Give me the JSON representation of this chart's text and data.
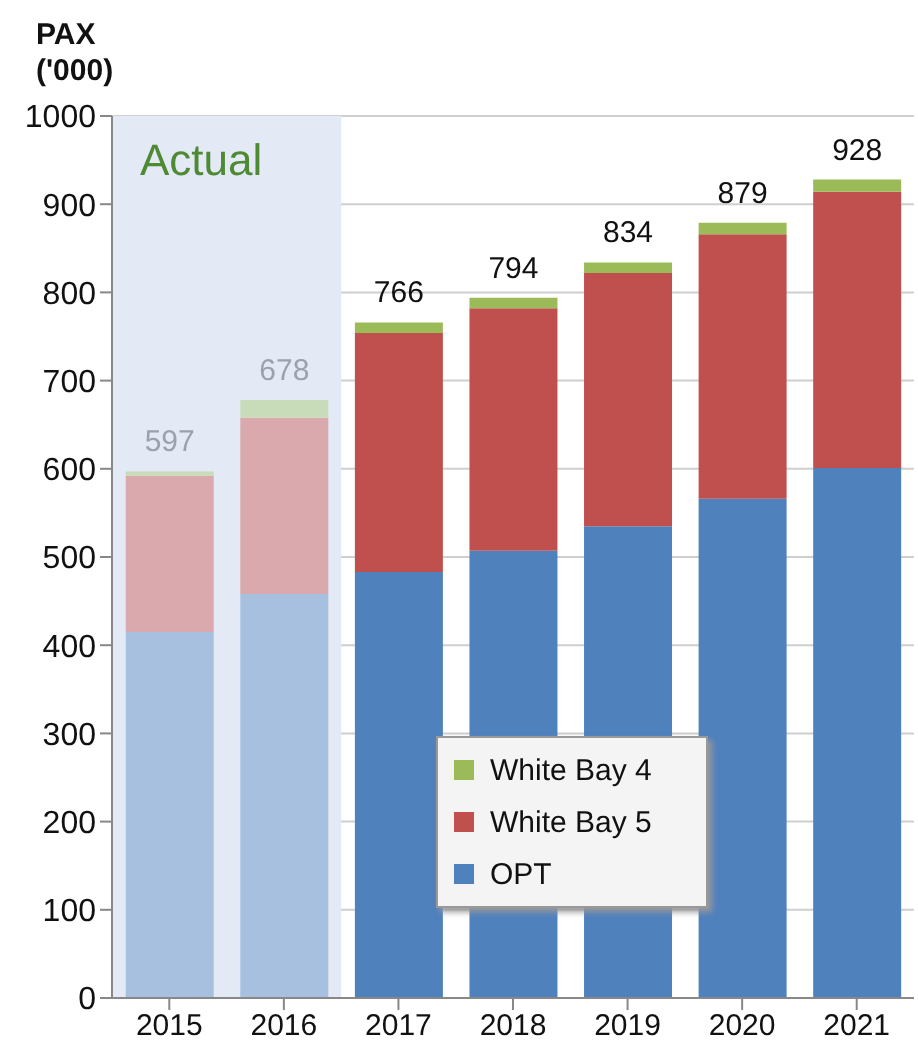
{
  "chart_data": {
    "type": "bar",
    "ylabel": "PAX ('000)",
    "categories": [
      "2015",
      "2016",
      "2017",
      "2018",
      "2019",
      "2020",
      "2021"
    ],
    "stacked": true,
    "series": [
      {
        "name": "OPT",
        "color": "#4f81bd",
        "colors": [
          "#a7c0e0",
          "#a7c0e0",
          "#4f81bd",
          "#4f81bd",
          "#4f81bd",
          "#4f81bd",
          "#4f81bd"
        ],
        "values": [
          415,
          458,
          483,
          507,
          535,
          566,
          601
        ]
      },
      {
        "name": "White Bay 5",
        "color": "#c0504d",
        "colors": [
          "#d9a9ad",
          "#d9a9ad",
          "#c0504d",
          "#c0504d",
          "#c0504d",
          "#c0504d",
          "#c0504d"
        ],
        "values": [
          177,
          200,
          271,
          275,
          287,
          300,
          313
        ]
      },
      {
        "name": "White Bay 4",
        "color": "#9bbb59",
        "colors": [
          "#c8dcb9",
          "#c8dcb9",
          "#9bbb59",
          "#9bbb59",
          "#9bbb59",
          "#9bbb59",
          "#9bbb59"
        ],
        "values": [
          5,
          20,
          12,
          12,
          12,
          13,
          14
        ]
      }
    ],
    "totals": [
      "597",
      "678",
      "766",
      "794",
      "834",
      "879",
      "928"
    ],
    "bands": [
      {
        "axis": "x",
        "from": "2015",
        "to": "2016",
        "label": "Actual",
        "color": "#e3eaf5"
      }
    ],
    "ylim": [
      0,
      1000
    ],
    "yticks": [
      0,
      100,
      200,
      300,
      400,
      500,
      600,
      700,
      800,
      900,
      1000
    ],
    "grid": "y",
    "legend": "bottom"
  }
}
